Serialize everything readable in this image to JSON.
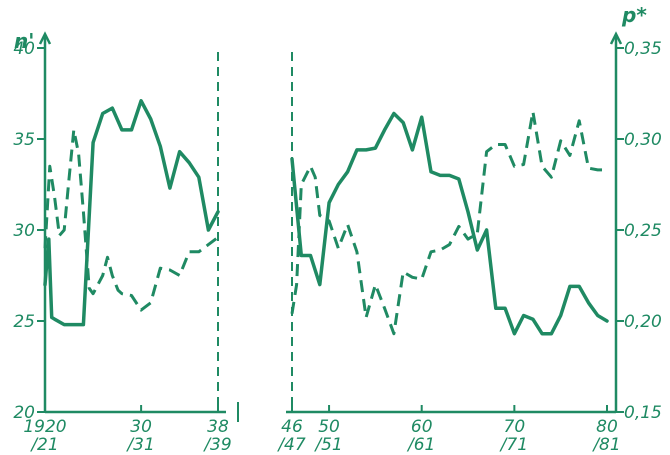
{
  "chart_data": {
    "type": "line",
    "color": "#1f8a63",
    "left_axis": {
      "label": "n'",
      "range": [
        20,
        40
      ],
      "ticks": [
        20,
        25,
        30,
        35,
        40
      ],
      "tick_labels": [
        "20",
        "25",
        "30",
        "35",
        "40"
      ]
    },
    "right_axis": {
      "label": "p*",
      "range": [
        0.15,
        0.35
      ],
      "ticks": [
        0.15,
        0.2,
        0.25,
        0.3,
        0.35
      ],
      "tick_labels": [
        "0,15",
        "0,20",
        "0,25",
        "0,30",
        "0,35"
      ]
    },
    "x_axis": {
      "ticks": [
        {
          "x": 1920,
          "top": "1920",
          "bottom": "/21"
        },
        {
          "x": 1930,
          "top": "30",
          "bottom": "/31"
        },
        {
          "x": 1938,
          "top": "38",
          "bottom": "/39"
        },
        {
          "x": 1946,
          "top": "46",
          "bottom": "/47"
        },
        {
          "x": 1950,
          "top": "50",
          "bottom": "/51"
        },
        {
          "x": 1960,
          "top": "60",
          "bottom": "/61"
        },
        {
          "x": 1970,
          "top": "70",
          "bottom": "/71"
        },
        {
          "x": 1980,
          "top": "80",
          "bottom": "/81"
        }
      ],
      "segments": [
        [
          1920,
          1938
        ],
        [
          1946,
          1980
        ]
      ],
      "break_markers": [
        1938,
        1946
      ]
    },
    "series": [
      {
        "axis": "left",
        "style": "solid",
        "segments": [
          {
            "x": [
              1920,
              1920.4,
              1920.7,
              1921,
              1922,
              1923,
              1924,
              1925,
              1926,
              1927,
              1928,
              1929,
              1930,
              1931,
              1932,
              1933,
              1934,
              1935,
              1936,
              1937,
              1938
            ],
            "y": [
              27,
              29.5,
              25.2,
              25.1,
              24.8,
              24.8,
              24.8,
              34.8,
              36.4,
              36.7,
              35.5,
              35.5,
              37.1,
              36.1,
              34.6,
              32.3,
              34.3,
              33.7,
              32.9,
              30,
              31
            ]
          },
          {
            "x": [
              1946,
              1947,
              1948,
              1949,
              1950,
              1951,
              1952,
              1953,
              1954,
              1955,
              1956,
              1957,
              1958,
              1959,
              1960,
              1961,
              1962,
              1963,
              1964,
              1965,
              1966,
              1967,
              1968,
              1969,
              1970,
              1971,
              1972,
              1973,
              1974,
              1975,
              1976,
              1977,
              1978,
              1979,
              1980
            ],
            "y": [
              33.9,
              28.6,
              28.6,
              27,
              31.5,
              32.5,
              33.2,
              34.4,
              34.4,
              34.5,
              35.5,
              36.4,
              35.9,
              34.4,
              36.2,
              33.2,
              33.0,
              33.0,
              32.8,
              31.0,
              28.9,
              30.0,
              25.7,
              25.7,
              24.3,
              25.3,
              25.1,
              24.3,
              24.3,
              25.3,
              26.9,
              26.9,
              26.0,
              25.3,
              25.0
            ]
          }
        ]
      },
      {
        "axis": "right",
        "style": "dashed",
        "segments": [
          {
            "x": [
              1920,
              1920.5,
              1921,
              1921.5,
              1922,
              1922.5,
              1923,
              1923.5,
              1924,
              1924.6,
              1925,
              1925.5,
              1926,
              1926.5,
              1927,
              1927.6,
              1928,
              1929,
              1930,
              1931,
              1932,
              1933,
              1934,
              1935,
              1936,
              1937,
              1938
            ],
            "y": [
              0.24,
              0.285,
              0.268,
              0.247,
              0.25,
              0.278,
              0.305,
              0.292,
              0.26,
              0.218,
              0.215,
              0.22,
              0.225,
              0.235,
              0.225,
              0.217,
              0.215,
              0.214,
              0.206,
              0.21,
              0.229,
              0.228,
              0.225,
              0.238,
              0.238,
              0.242,
              0.246
            ]
          },
          {
            "x": [
              1946,
              1946.5,
              1947,
              1948,
              1948.5,
              1949,
              1950,
              1951,
              1952,
              1953,
              1954,
              1955,
              1956,
              1957,
              1958,
              1959,
              1960,
              1961,
              1962,
              1963,
              1964,
              1965,
              1966,
              1967,
              1968,
              1969,
              1970,
              1971,
              1972,
              1973,
              1974,
              1975,
              1976,
              1977,
              1978,
              1979,
              1980
            ],
            "y": [
              0.204,
              0.22,
              0.275,
              0.285,
              0.279,
              0.258,
              0.255,
              0.24,
              0.253,
              0.238,
              0.202,
              0.22,
              0.207,
              0.193,
              0.227,
              0.224,
              0.223,
              0.238,
              0.239,
              0.242,
              0.252,
              0.245,
              0.248,
              0.293,
              0.297,
              0.297,
              0.285,
              0.286,
              0.315,
              0.285,
              0.279,
              0.299,
              0.291,
              0.31,
              0.284,
              0.283,
              0.283
            ]
          }
        ]
      }
    ]
  }
}
